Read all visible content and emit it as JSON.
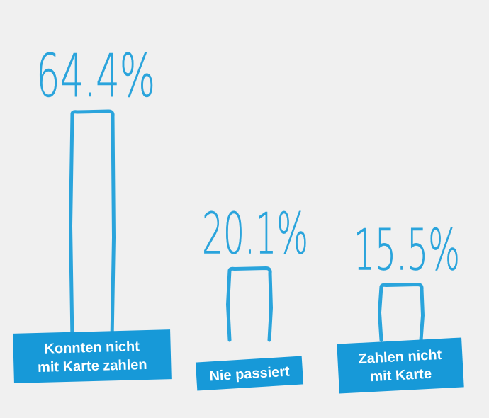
{
  "chart_data": {
    "type": "bar",
    "categories": [
      [
        "Konnten nicht",
        "mit Karte zahlen"
      ],
      [
        "Nie passiert"
      ],
      [
        "Zahlen nicht",
        "mit Karte"
      ]
    ],
    "values": [
      64.4,
      20.1,
      15.5
    ],
    "value_labels": [
      "64.4%",
      "20.1%",
      "15.5%"
    ],
    "ylim": [
      0,
      64.4
    ],
    "grid": false,
    "legend": "none"
  },
  "colors": {
    "background": "#f0f0f0",
    "accent": "#2aa4dc",
    "label_box": "#1799d8",
    "label_text": "#ffffff"
  }
}
